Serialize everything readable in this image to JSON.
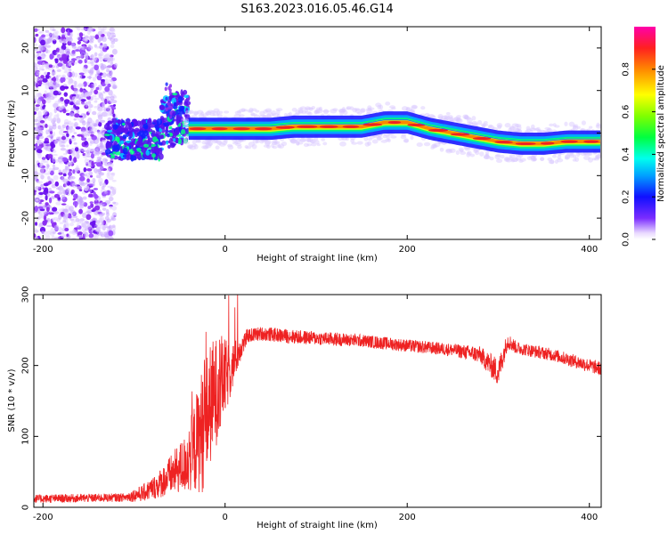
{
  "figure_title": "S163.2023.016.05.46.G14",
  "colors": {
    "snr_line": "#ee2222",
    "track_core": "#ee2222",
    "frame": "#000000"
  },
  "chart_data": [
    {
      "type": "heatmap",
      "name": "spectrogram",
      "xlabel": "Height of straight line (km)",
      "ylabel": "Frequency (Hz)",
      "xlim": [
        -210,
        413
      ],
      "ylim": [
        -25,
        25
      ],
      "xticks": [
        -200,
        0,
        200,
        400
      ],
      "yticks": [
        -20,
        -10,
        0,
        10,
        20
      ],
      "colorbar": {
        "label": "Normalized spectral amplitude",
        "range": [
          0,
          1
        ],
        "ticks": [
          0.0,
          0.2,
          0.4,
          0.6,
          0.8
        ]
      },
      "ridge": {
        "x": [
          -40,
          -20,
          0,
          25,
          50,
          75,
          100,
          125,
          150,
          175,
          200,
          225,
          250,
          275,
          300,
          325,
          350,
          375,
          400,
          413
        ],
        "y": [
          1,
          1,
          1,
          1,
          1,
          1.5,
          1.5,
          1.5,
          1.5,
          2.5,
          2.5,
          1,
          0,
          -1,
          -2,
          -2.5,
          -2.5,
          -2,
          -2,
          -2
        ]
      },
      "notes": "noise-dominated region for x < -130 km; unstable frequency between -130 and -40 km"
    },
    {
      "type": "line",
      "name": "snr",
      "xlabel": "Height of straight line (km)",
      "ylabel": "SNR (10 * v/v)",
      "xlim": [
        -210,
        413
      ],
      "ylim": [
        0,
        300
      ],
      "xticks": [
        -200,
        0,
        200,
        400
      ],
      "yticks": [
        0,
        100,
        200,
        300
      ],
      "envelope_x": [
        -210,
        -150,
        -110,
        -90,
        -75,
        -60,
        -45,
        -35,
        -25,
        -15,
        -5,
        5,
        15,
        25,
        40,
        80,
        150,
        200,
        250,
        280,
        300,
        310,
        320,
        360,
        413
      ],
      "envelope_mean": [
        12,
        13,
        14,
        20,
        30,
        45,
        60,
        80,
        110,
        150,
        175,
        190,
        220,
        242,
        245,
        240,
        235,
        228,
        222,
        215,
        190,
        235,
        225,
        215,
        195
      ],
      "envelope_amp": [
        6,
        6,
        6,
        12,
        18,
        28,
        40,
        60,
        90,
        85,
        70,
        40,
        20,
        10,
        10,
        10,
        9,
        9,
        9,
        12,
        20,
        12,
        9,
        9,
        10
      ]
    }
  ]
}
